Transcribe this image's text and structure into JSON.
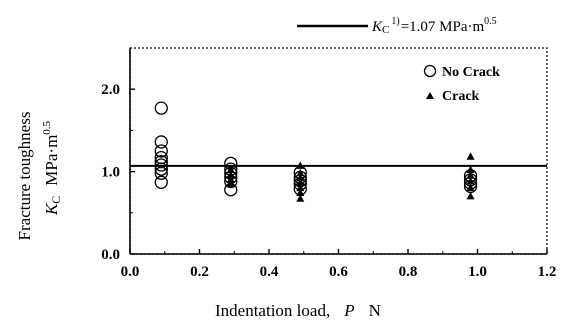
{
  "chart_data": {
    "type": "scatter",
    "xlabel": "Indentation load,",
    "xlabel_symbol": "P",
    "xlabel_unit": "N",
    "ylabel_line1": "Fracture toughness",
    "ylabel_symbol": "K",
    "ylabel_sub": "C",
    "ylabel_unit": "MPa·m",
    "ylabel_unit_sup": "0.5",
    "xlim": [
      0.0,
      1.2
    ],
    "ylim": [
      0.0,
      2.5
    ],
    "xticks": [
      "0.0",
      "0.2",
      "0.4",
      "0.6",
      "0.8",
      "1.0",
      "1.2"
    ],
    "yticks": [
      "0.0",
      "1.0",
      "2.0"
    ],
    "reference": {
      "value": 1.07,
      "symbol": "K",
      "sub": "C",
      "sup": "1)",
      "text": "=1.07 MPa·m",
      "text_sup": "0.5"
    },
    "legend_position": "top-right",
    "series": [
      {
        "name": "No Crack",
        "marker": "open-circle",
        "color": "#000000",
        "points": [
          {
            "x": 0.09,
            "y": 1.77
          },
          {
            "x": 0.09,
            "y": 1.36
          },
          {
            "x": 0.09,
            "y": 1.25
          },
          {
            "x": 0.09,
            "y": 1.17
          },
          {
            "x": 0.09,
            "y": 1.12
          },
          {
            "x": 0.09,
            "y": 1.08
          },
          {
            "x": 0.09,
            "y": 1.03
          },
          {
            "x": 0.09,
            "y": 0.98
          },
          {
            "x": 0.09,
            "y": 0.87
          },
          {
            "x": 0.29,
            "y": 1.1
          },
          {
            "x": 0.29,
            "y": 1.03
          },
          {
            "x": 0.29,
            "y": 0.98
          },
          {
            "x": 0.29,
            "y": 0.93
          },
          {
            "x": 0.29,
            "y": 0.88
          },
          {
            "x": 0.29,
            "y": 0.78
          },
          {
            "x": 0.49,
            "y": 0.99
          },
          {
            "x": 0.49,
            "y": 0.93
          },
          {
            "x": 0.49,
            "y": 0.89
          },
          {
            "x": 0.49,
            "y": 0.85
          },
          {
            "x": 0.49,
            "y": 0.79
          },
          {
            "x": 0.98,
            "y": 0.95
          },
          {
            "x": 0.98,
            "y": 0.9
          },
          {
            "x": 0.98,
            "y": 0.86
          },
          {
            "x": 0.98,
            "y": 0.82
          }
        ]
      },
      {
        "name": "Crack",
        "marker": "filled-triangle",
        "color": "#000000",
        "points": [
          {
            "x": 0.29,
            "y": 1.02
          },
          {
            "x": 0.29,
            "y": 0.95
          },
          {
            "x": 0.29,
            "y": 0.9
          },
          {
            "x": 0.29,
            "y": 0.85
          },
          {
            "x": 0.49,
            "y": 1.07
          },
          {
            "x": 0.49,
            "y": 0.98
          },
          {
            "x": 0.49,
            "y": 0.92
          },
          {
            "x": 0.49,
            "y": 0.86
          },
          {
            "x": 0.49,
            "y": 0.8
          },
          {
            "x": 0.49,
            "y": 0.74
          },
          {
            "x": 0.49,
            "y": 0.67
          },
          {
            "x": 0.98,
            "y": 1.18
          },
          {
            "x": 0.98,
            "y": 1.02
          },
          {
            "x": 0.98,
            "y": 0.95
          },
          {
            "x": 0.98,
            "y": 0.88
          },
          {
            "x": 0.98,
            "y": 0.8
          },
          {
            "x": 0.98,
            "y": 0.7
          }
        ]
      }
    ]
  }
}
